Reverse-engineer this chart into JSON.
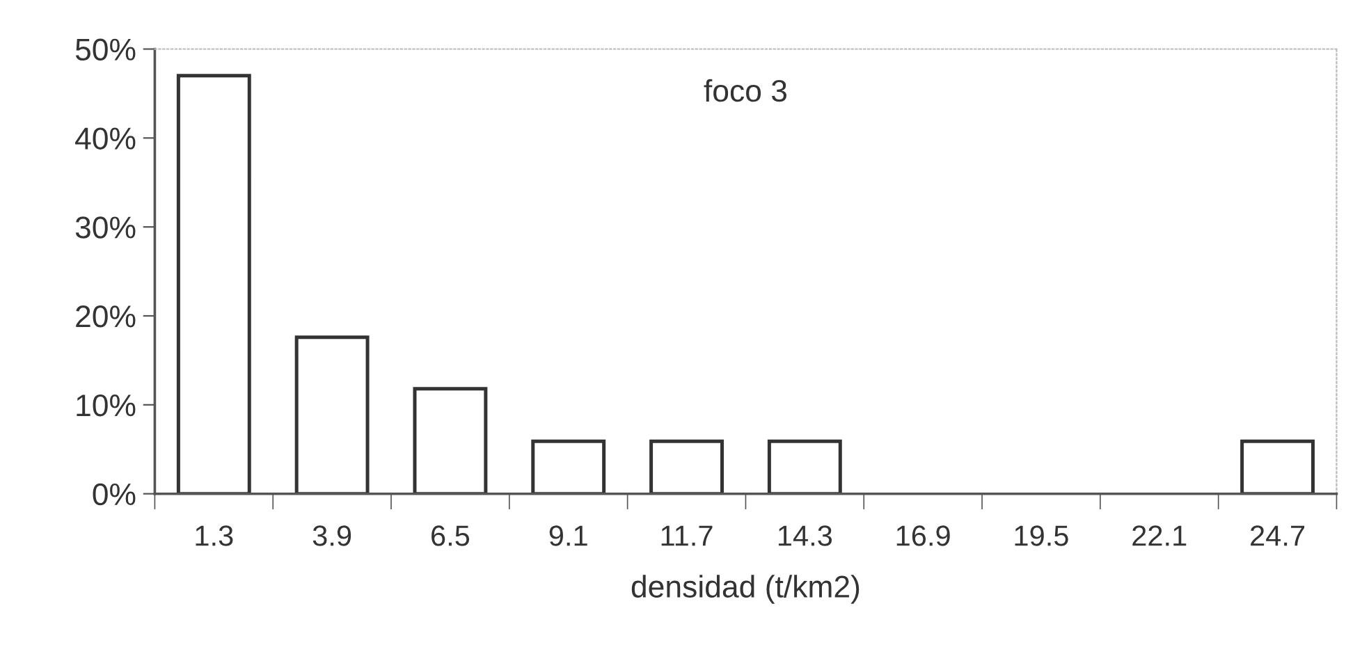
{
  "chart_data": {
    "type": "bar",
    "title": "foco 3",
    "xlabel": "densidad (t/km2)",
    "categories": [
      "1.3",
      "3.9",
      "6.5",
      "9.1",
      "11.7",
      "14.3",
      "16.9",
      "19.5",
      "22.1",
      "24.7"
    ],
    "values": [
      47,
      17.6,
      11.8,
      5.9,
      5.9,
      5.9,
      0,
      0,
      0,
      5.9
    ],
    "color": "#ffffff",
    "ylim": [
      0,
      50
    ],
    "yticks": [
      {
        "value": 0,
        "label": "0%"
      },
      {
        "value": 10,
        "label": "10%"
      },
      {
        "value": 20,
        "label": "20%"
      },
      {
        "value": 30,
        "label": "30%"
      },
      {
        "value": 40,
        "label": "40%"
      },
      {
        "value": 50,
        "label": "50%"
      }
    ],
    "grid": false,
    "legend": false
  }
}
